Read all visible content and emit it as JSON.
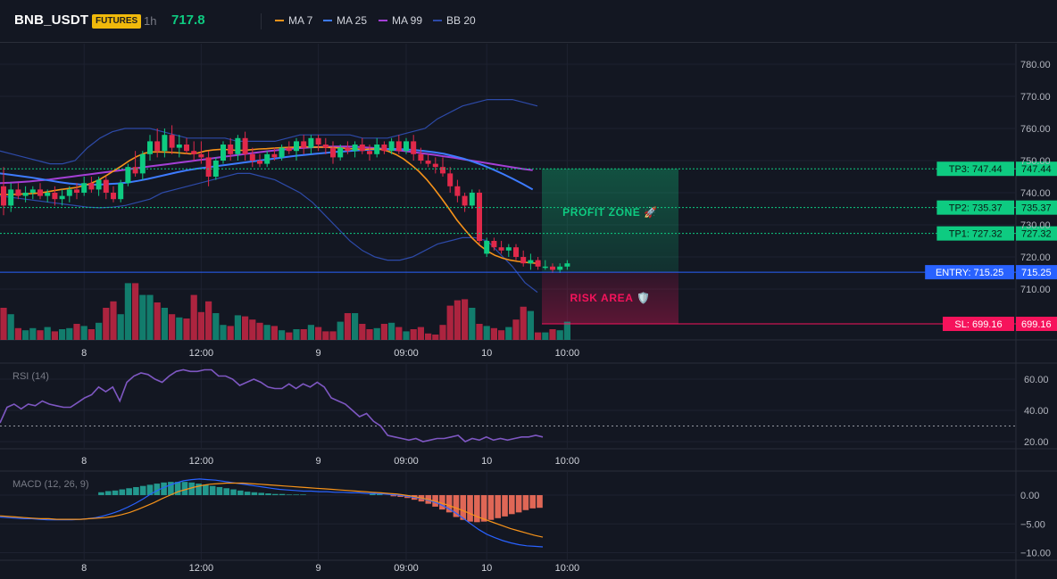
{
  "header": {
    "symbol": "BNB_USDT",
    "badge": "FUTURES",
    "timeframe": "1h",
    "price": "717.8",
    "legend": [
      {
        "label": "MA 7",
        "color": "#f7931a"
      },
      {
        "label": "MA 25",
        "color": "#3d7bff"
      },
      {
        "label": "MA 99",
        "color": "#a43fd6"
      },
      {
        "label": "BB 20",
        "color": "#2d4aa8"
      }
    ]
  },
  "colors": {
    "up": "#139f86",
    "down": "#e0294a",
    "up_bright": "#0ecb81",
    "grid": "#1e2230"
  },
  "chart_data": [
    {
      "type": "candlestick",
      "id": "price",
      "ylim": [
        700,
        785
      ],
      "yticks": [
        710,
        720,
        730,
        740,
        750,
        760,
        770,
        780
      ],
      "ytick_labels": [
        "710.00",
        "720.00",
        "730.00",
        "740.00",
        "750.00",
        "760.00",
        "770.00",
        "780.00"
      ],
      "xticks": [
        {
          "label": "8",
          "index": 11
        },
        {
          "label": "12:00",
          "index": 27
        },
        {
          "label": "9",
          "index": 43
        },
        {
          "label": "09:00",
          "index": 55
        },
        {
          "label": "10",
          "index": 66
        },
        {
          "label": "10:00",
          "index": 77
        }
      ],
      "ohlc": [
        [
          742,
          748,
          733,
          736
        ],
        [
          736,
          743,
          734,
          741
        ],
        [
          741,
          743,
          738,
          739
        ],
        [
          739,
          742,
          737,
          740
        ],
        [
          740,
          742,
          738,
          741
        ],
        [
          741,
          743,
          738,
          739
        ],
        [
          739,
          741,
          737,
          740
        ],
        [
          740,
          742,
          736,
          738
        ],
        [
          738,
          741,
          736,
          739
        ],
        [
          739,
          742,
          737,
          741
        ],
        [
          741,
          743,
          738,
          740
        ],
        [
          740,
          745,
          739,
          743
        ],
        [
          743,
          745,
          740,
          741
        ],
        [
          741,
          745,
          739,
          744
        ],
        [
          744,
          745,
          738,
          740
        ],
        [
          740,
          742,
          737,
          738
        ],
        [
          738,
          744,
          737,
          743
        ],
        [
          743,
          749,
          742,
          748
        ],
        [
          748,
          753,
          745,
          746
        ],
        [
          746,
          753,
          744,
          752
        ],
        [
          752,
          758,
          750,
          756
        ],
        [
          756,
          760,
          751,
          753
        ],
        [
          753,
          760,
          751,
          758
        ],
        [
          758,
          761,
          752,
          754
        ],
        [
          754,
          758,
          751,
          755
        ],
        [
          755,
          757,
          752,
          753
        ],
        [
          753,
          756,
          750,
          752
        ],
        [
          752,
          756,
          749,
          751
        ],
        [
          751,
          753,
          742,
          745
        ],
        [
          745,
          751,
          744,
          750
        ],
        [
          750,
          756,
          749,
          755
        ],
        [
          755,
          757,
          750,
          752
        ],
        [
          752,
          758,
          750,
          757
        ],
        [
          757,
          759,
          750,
          752
        ],
        [
          752,
          754,
          748,
          750
        ],
        [
          750,
          752,
          748,
          749
        ],
        [
          749,
          753,
          748,
          752
        ],
        [
          752,
          754,
          750,
          751
        ],
        [
          751,
          755,
          750,
          754
        ],
        [
          754,
          756,
          752,
          753
        ],
        [
          753,
          757,
          750,
          756
        ],
        [
          756,
          758,
          752,
          754
        ],
        [
          754,
          758,
          752,
          757
        ],
        [
          757,
          758,
          753,
          755
        ],
        [
          755,
          757,
          752,
          754
        ],
        [
          754,
          756,
          749,
          751
        ],
        [
          751,
          755,
          750,
          754
        ],
        [
          754,
          756,
          752,
          753
        ],
        [
          753,
          756,
          751,
          755
        ],
        [
          755,
          757,
          752,
          753
        ],
        [
          753,
          755,
          750,
          752
        ],
        [
          752,
          757,
          751,
          755
        ],
        [
          755,
          756,
          752,
          753
        ],
        [
          753,
          757,
          752,
          756
        ],
        [
          756,
          758,
          752,
          753
        ],
        [
          753,
          757,
          752,
          756
        ],
        [
          756,
          758,
          750,
          752
        ],
        [
          752,
          754,
          749,
          750
        ],
        [
          750,
          752,
          748,
          749
        ],
        [
          749,
          751,
          746,
          748
        ],
        [
          748,
          751,
          745,
          746
        ],
        [
          746,
          748,
          740,
          742
        ],
        [
          742,
          744,
          737,
          739
        ],
        [
          739,
          740,
          734,
          736
        ],
        [
          736,
          741,
          735,
          740
        ],
        [
          740,
          741,
          724,
          725
        ],
        [
          721,
          726,
          720,
          725
        ],
        [
          725,
          726,
          722,
          723
        ],
        [
          723,
          725,
          721,
          722
        ],
        [
          722,
          724,
          720,
          723
        ],
        [
          723,
          724,
          719,
          720
        ],
        [
          720,
          722,
          717,
          718
        ],
        [
          718,
          721,
          716,
          719
        ],
        [
          719,
          720,
          716,
          717
        ],
        [
          717,
          719,
          716,
          717
        ],
        [
          717,
          718,
          715,
          716
        ],
        [
          716,
          718,
          715,
          717
        ],
        [
          717,
          719,
          716,
          718
        ]
      ],
      "ma7": [
        739.5,
        739.4,
        739.5,
        739.6,
        739.7,
        739.9,
        740.2,
        740.6,
        741,
        741.3,
        741.6,
        742.2,
        743,
        744,
        745.4,
        746.9,
        748.4,
        750,
        751.3,
        752.3,
        752.7,
        752.7,
        752.6,
        752.5,
        752.3,
        752.1,
        752.4,
        753,
        753.3,
        753.5,
        753.4,
        753.2,
        753.2,
        753.4,
        753.6,
        753.7,
        753.9,
        754,
        754.1,
        754.2,
        754.3,
        754.2,
        754.2,
        754.1,
        754,
        753.9,
        753.7,
        753.6,
        753.5,
        753.6,
        753.5,
        752.9,
        751.9,
        750.5,
        748.7,
        746.7,
        744.2,
        741.3,
        738.2,
        734.9,
        731.5,
        728.6,
        725.9,
        723.6,
        721.8,
        720.5,
        719.6,
        719,
        718.6,
        718.3,
        718.1,
        717.9
      ],
      "ma25": [
        746,
        745.6,
        745.2,
        744.8,
        744.3,
        743.8,
        743.3,
        742.9,
        742.6,
        742.5,
        742.5,
        742.7,
        742.9,
        743.2,
        743.7,
        744.3,
        745,
        745.7,
        746.4,
        747,
        747.5,
        747.9,
        748.3,
        748.7,
        749.1,
        749.5,
        749.9,
        750.3,
        750.7,
        751.1,
        751.5,
        751.8,
        752.1,
        752.4,
        752.7,
        752.9,
        753.1,
        753.3,
        753.5,
        753.6,
        753.6,
        753.5,
        753.3,
        753,
        752.6,
        752.1,
        751.4,
        750.6,
        749.6,
        748.5,
        747.2,
        745.8,
        744.3,
        742.7,
        741
      ],
      "ma99": [
        743,
        743.1,
        743.3,
        743.5,
        743.8,
        744.1,
        744.5,
        744.9,
        745.3,
        745.7,
        746.1,
        746.5,
        746.9,
        747.3,
        747.7,
        748.1,
        748.5,
        748.9,
        749.3,
        749.7,
        750.1,
        750.5,
        750.9,
        751.3,
        751.7,
        752.1,
        752.5,
        752.9,
        753.2,
        753.5,
        753.8,
        754,
        754.2,
        754.3,
        754.4,
        754.4,
        754.3,
        754.1,
        753.9,
        753.6,
        753.3,
        753,
        752.6,
        752.2,
        751.8,
        751.3,
        750.9,
        750.4,
        749.9,
        749.4,
        748.9,
        748.4,
        747.9,
        747.4,
        747
      ],
      "bb_upper": [
        753,
        752,
        751,
        750,
        749,
        749,
        750,
        754,
        757,
        759,
        760,
        760,
        760,
        759,
        758,
        757,
        757,
        757,
        757,
        756,
        756,
        756,
        756,
        757,
        758,
        758,
        758,
        758,
        758,
        757,
        757,
        757,
        758,
        759,
        760,
        763,
        765,
        767,
        768,
        769,
        769,
        769,
        768,
        767
      ],
      "bb_lower": [
        739,
        738.5,
        738,
        737.5,
        737,
        736.5,
        736,
        735.5,
        735.3,
        735.5,
        736,
        737,
        738,
        740,
        741,
        742,
        743,
        744,
        745,
        746,
        746,
        745,
        744,
        742,
        740,
        737,
        733,
        729,
        725,
        722,
        720,
        719,
        719,
        720,
        722,
        724,
        725,
        726,
        726,
        725,
        721,
        717,
        712,
        709
      ],
      "levels": [
        {
          "name": "TP3",
          "label": "TP3: 747.44",
          "value": 747.44,
          "axis_label": "747.44",
          "color": "#0ecb81"
        },
        {
          "name": "TP2",
          "label": "TP2: 735.37",
          "value": 735.37,
          "axis_label": "735.37",
          "color": "#0ecb81"
        },
        {
          "name": "TP1",
          "label": "TP1: 727.32",
          "value": 727.32,
          "axis_label": "727.32",
          "color": "#0ecb81"
        },
        {
          "name": "ENTRY",
          "label": "ENTRY: 715.25",
          "value": 715.25,
          "axis_label": "715.25",
          "color": "#2962ff"
        },
        {
          "name": "SL",
          "label": "SL: 699.16",
          "value": 699.16,
          "axis_label": "699.16",
          "color": "#f6135c"
        }
      ],
      "zones": {
        "profit_label": "PROFIT ZONE 🚀",
        "risk_label": "RISK AREA 🛡️"
      },
      "volume": [
        60,
        48,
        22,
        18,
        22,
        18,
        24,
        16,
        20,
        22,
        30,
        26,
        20,
        32,
        60,
        72,
        48,
        106,
        106,
        84,
        84,
        70,
        60,
        48,
        42,
        40,
        84,
        52,
        72,
        50,
        28,
        26,
        46,
        44,
        38,
        32,
        28,
        26,
        18,
        14,
        20,
        20,
        28,
        24,
        16,
        16,
        34,
        50,
        50,
        30,
        20,
        22,
        30,
        32,
        24,
        16,
        20,
        24,
        12,
        10,
        28,
        64,
        74,
        76,
        60,
        30,
        26,
        22,
        18,
        24,
        38,
        62,
        54,
        14,
        14,
        20,
        18,
        34
      ]
    },
    {
      "type": "line",
      "id": "rsi",
      "title": "RSI (14)",
      "ylim": [
        16,
        66
      ],
      "yticks": [
        20,
        40,
        60
      ],
      "ytick_labels": [
        "20.00",
        "40.00",
        "60.00"
      ],
      "reference": 30,
      "values": [
        32,
        42,
        44,
        41,
        44,
        43,
        46,
        44,
        43,
        42,
        42,
        45,
        48,
        50,
        55,
        52,
        55,
        46,
        58,
        62,
        64,
        63,
        60,
        58,
        62,
        65,
        66,
        65,
        65,
        66,
        66,
        62,
        62,
        60,
        56,
        58,
        60,
        58,
        55,
        54,
        54,
        57,
        54,
        57,
        55,
        58,
        55,
        48,
        46,
        44,
        40,
        36,
        38,
        33,
        30,
        24,
        23,
        22,
        21,
        22,
        20,
        21,
        22,
        22,
        23,
        24,
        20,
        22,
        21,
        23,
        21,
        22,
        21,
        22,
        23,
        23,
        24,
        23
      ],
      "xticks": [
        "8",
        "12:00",
        "9",
        "09:00",
        "10",
        "10:00"
      ]
    },
    {
      "type": "bar",
      "id": "macd",
      "title": "MACD (12, 26, 9)",
      "ylim": [
        -10.6,
        3.3
      ],
      "yticks": [
        0,
        -5,
        -10
      ],
      "ytick_labels": [
        "0.00",
        "−5.00",
        "−10.00"
      ],
      "histogram": [
        0,
        0,
        0,
        0,
        0,
        0,
        0,
        0,
        0,
        0,
        0,
        0,
        0,
        0,
        0.5,
        0.7,
        0.8,
        1,
        1.2,
        1.4,
        1.6,
        1.8,
        2,
        2.2,
        2.3,
        2.3,
        2.3,
        2.2,
        2,
        1.8,
        1.6,
        1.4,
        1.2,
        1,
        0.8,
        0.6,
        0.5,
        0.4,
        0.3,
        0.2,
        0.2,
        0.1,
        0.1,
        0.1,
        0,
        0,
        0,
        0,
        0,
        0,
        0,
        0,
        0,
        0.3,
        0.2,
        0,
        -0.2,
        -0.3,
        -0.5,
        -0.8,
        -1.1,
        -1.5,
        -2,
        -2.5,
        -3,
        -3.8,
        -4.3,
        -4.6,
        -4.7,
        -4.6,
        -4.3,
        -4,
        -3.7,
        -3.3,
        -3,
        -2.6,
        -2.3,
        -2.2
      ],
      "macd_line": [
        -3.8,
        -3.9,
        -4,
        -4.1,
        -4.1,
        -4.2,
        -4.3,
        -4.3,
        -4.3,
        -4.3,
        -4.2,
        -4.1,
        -3.9,
        -3.6,
        -3.2,
        -2.7,
        -2.1,
        -1.4,
        -0.6,
        0.3,
        1,
        1.6,
        2.1,
        2.5,
        2.7,
        2.8,
        2.7,
        2.6,
        2.4,
        2.2,
        2,
        1.8,
        1.6,
        1.4,
        1.2,
        1,
        0.9,
        0.8,
        0.7,
        0.7,
        0.6,
        0.6,
        0.5,
        0.5,
        0.4,
        0.4,
        0.3,
        0.3,
        0.2,
        0.1,
        0,
        -0.2,
        -0.4,
        -0.6,
        -1,
        -1.5,
        -2.2,
        -3,
        -4,
        -5,
        -6,
        -6.8,
        -7.4,
        -7.9,
        -8.3,
        -8.6,
        -8.8,
        -8.9,
        -9
      ],
      "signal_line": [
        -3.6,
        -3.7,
        -3.8,
        -3.9,
        -4,
        -4.1,
        -4.1,
        -4.2,
        -4.2,
        -4.2,
        -4.2,
        -4.1,
        -4,
        -3.9,
        -3.7,
        -3.4,
        -3,
        -2.5,
        -1.9,
        -1.3,
        -0.6,
        0,
        0.6,
        1,
        1.4,
        1.7,
        1.9,
        2,
        2.1,
        2.1,
        2.1,
        2,
        1.9,
        1.8,
        1.7,
        1.6,
        1.5,
        1.4,
        1.3,
        1.2,
        1.1,
        1,
        0.9,
        0.8,
        0.7,
        0.6,
        0.5,
        0.4,
        0.3,
        0.2,
        0,
        -0.2,
        -0.5,
        -0.8,
        -1.2,
        -1.6,
        -2.1,
        -2.6,
        -3.2,
        -3.8,
        -4.3,
        -4.8,
        -5.3,
        -5.8,
        -6.2,
        -6.6,
        -7,
        -7.3
      ],
      "xticks": [
        "8",
        "12:00",
        "9",
        "09:00",
        "10",
        "10:00"
      ]
    }
  ]
}
